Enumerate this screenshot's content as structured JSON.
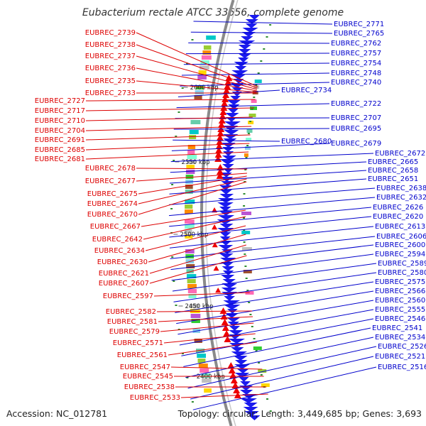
{
  "title": "Eubacterium rectale ATCC 33656, complete genome",
  "footer": {
    "accession": "Accession: NC_012781",
    "topology": "Topology: circular; Length: 3,449,685 bp; Genes: 3,693"
  },
  "colors": {
    "forward_labels": "#0000cc",
    "reverse_labels": "#dd0000",
    "forward_arrows": "#1a1aee",
    "reverse_arrows": "#ee0000",
    "backbone": "#8a8a8a",
    "tick_marks": "#2e8b2e"
  },
  "kbp_labels": [
    "2600 kbp",
    "2550 kbp",
    "2500 kbp",
    "2450 kbp",
    "2400 kbp"
  ],
  "right_labels": [
    "EUBREC_2771",
    "EUBREC_2765",
    "EUBREC_2762",
    "EUBREC_2757",
    "EUBREC_2754",
    "EUBREC_2748",
    "EUBREC_2740",
    "EUBREC_2734",
    "EUBREC_2722",
    "EUBREC_2707",
    "EUBREC_2695",
    "EUBREC_2680",
    "EUBREC_2679",
    "EUBREC_2672",
    "EUBREC_2665",
    "EUBREC_2658",
    "EUBREC_2651",
    "EUBREC_2638",
    "EUBREC_2632",
    "EUBREC_2626",
    "EUBREC_2620",
    "EUBREC_2613",
    "EUBREC_2606",
    "EUBREC_2600",
    "EUBREC_2594",
    "EUBREC_2589",
    "EUBREC_2580",
    "EUBREC_2575",
    "EUBREC_2566",
    "EUBREC_2560",
    "EUBREC_2555",
    "EUBREC_2546",
    "EUBREC_2541",
    "EUBREC_2534",
    "EUBREC_2526",
    "EUBREC_2521",
    "EUBREC_2516"
  ],
  "left_labels": [
    "EUBREC_2739",
    "EUBREC_2738",
    "EUBREC_2737",
    "EUBREC_2736",
    "EUBREC_2735",
    "EUBREC_2733",
    "EUBREC_2727",
    "EUBREC_2717",
    "EUBREC_2710",
    "EUBREC_2704",
    "EUBREC_2691",
    "EUBREC_2685",
    "EUBREC_2681",
    "EUBREC_2678",
    "EUBREC_2677",
    "EUBREC_2675",
    "EUBREC_2674",
    "EUBREC_2670",
    "EUBREC_2667",
    "EUBREC_2642",
    "EUBREC_2634",
    "EUBREC_2630",
    "EUBREC_2621",
    "EUBREC_2607",
    "EUBREC_2597",
    "EUBREC_2582",
    "EUBREC_2581",
    "EUBREC_2579",
    "EUBREC_2571",
    "EUBREC_2561",
    "EUBREC_2547",
    "EUBREC_2545",
    "EUBREC_2538",
    "EUBREC_2533"
  ]
}
